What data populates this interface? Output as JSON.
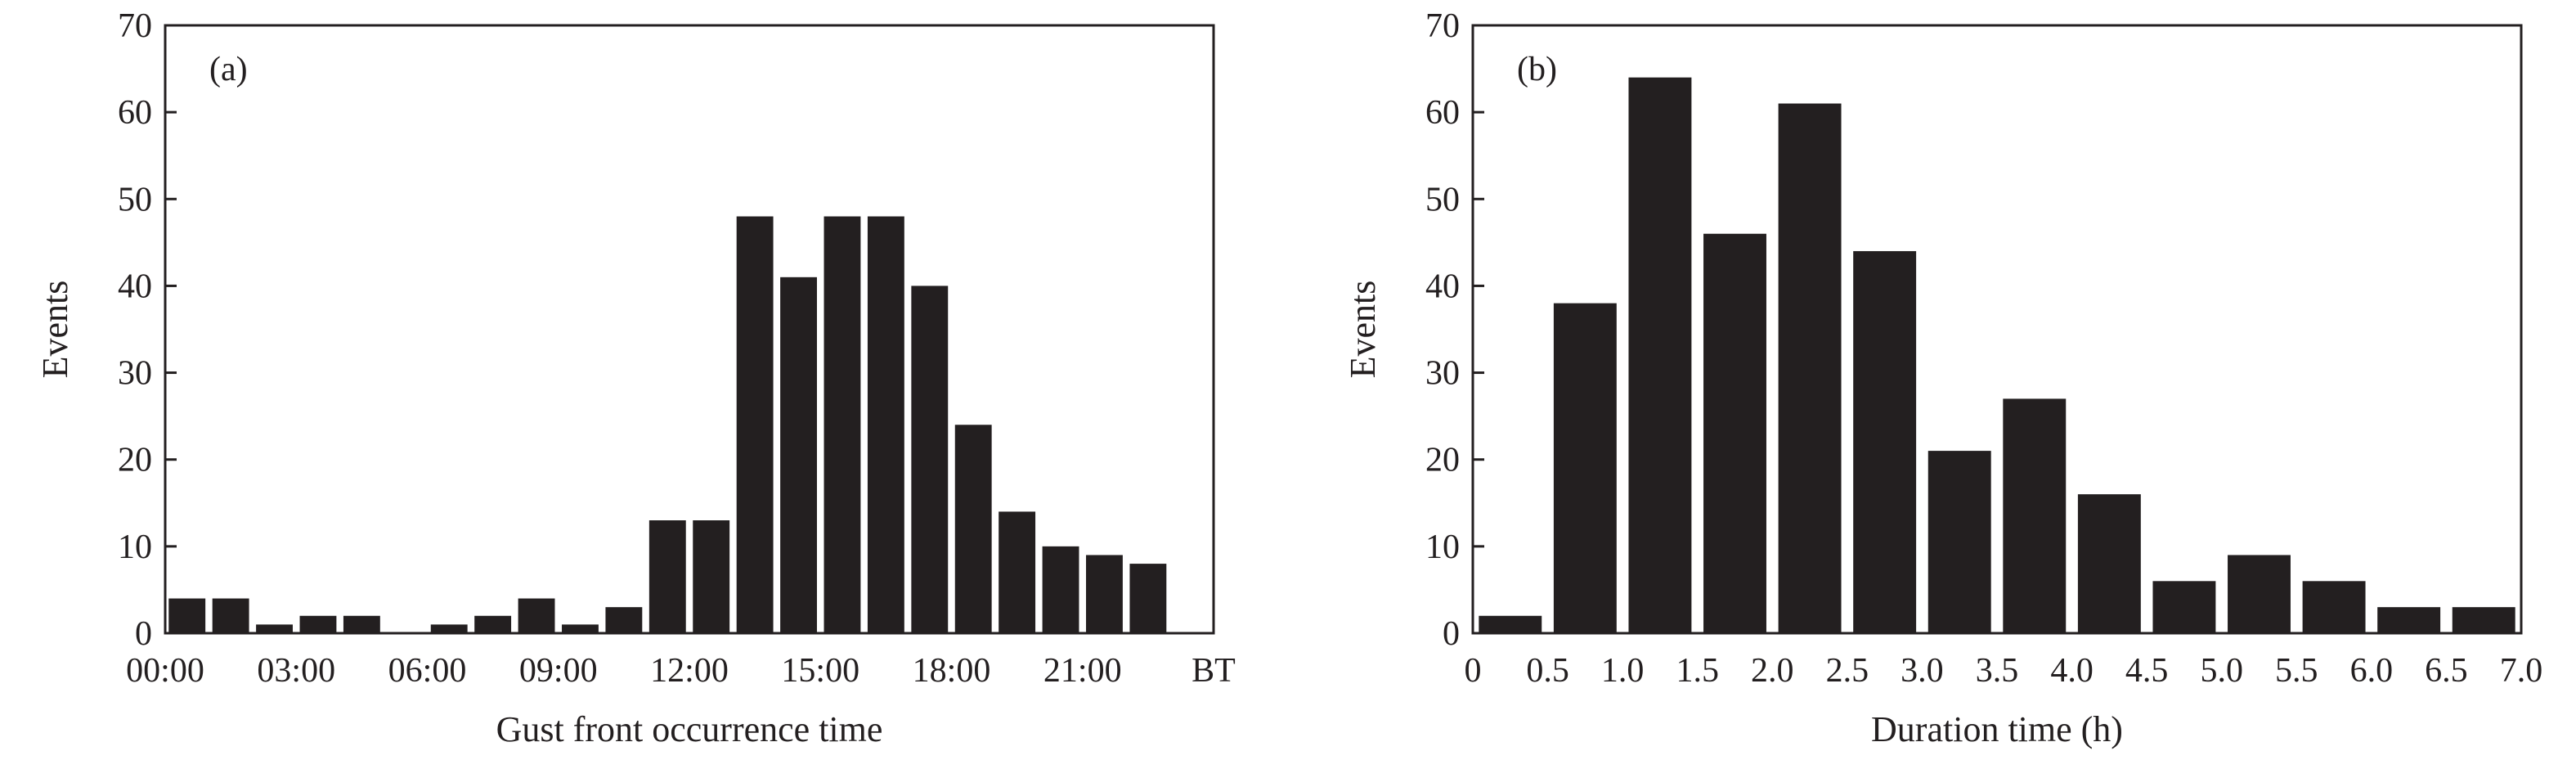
{
  "chart_data": [
    {
      "type": "bar",
      "panel_label": "(a)",
      "xlabel": "Gust front occurrence time",
      "ylabel": "Events",
      "ylim": [
        0,
        70
      ],
      "yticks": [
        "0",
        "10",
        "20",
        "30",
        "40",
        "50",
        "60",
        "70"
      ],
      "xtick_labels": [
        "00:00",
        "03:00",
        "06:00",
        "09:00",
        "12:00",
        "15:00",
        "18:00",
        "21:00",
        "BT"
      ],
      "categories": [
        "00",
        "01",
        "02",
        "03",
        "04",
        "05",
        "06",
        "07",
        "08",
        "09",
        "10",
        "11",
        "12",
        "13",
        "14",
        "15",
        "16",
        "17",
        "18",
        "19",
        "20",
        "21",
        "22",
        "23"
      ],
      "values": [
        4,
        4,
        1,
        2,
        2,
        0,
        1,
        2,
        4,
        1,
        3,
        13,
        13,
        48,
        41,
        48,
        48,
        40,
        24,
        14,
        10,
        9,
        8,
        0
      ],
      "grid": false,
      "legend": false,
      "bar_color": "#231f20"
    },
    {
      "type": "bar",
      "panel_label": "(b)",
      "xlabel": "Duration time (h)",
      "ylabel": "Events",
      "ylim": [
        0,
        70
      ],
      "xlim": [
        0,
        7.0
      ],
      "yticks": [
        "0",
        "10",
        "20",
        "30",
        "40",
        "50",
        "60",
        "70"
      ],
      "xtick_labels": [
        "0",
        "0.5",
        "1.0",
        "1.5",
        "2.0",
        "2.5",
        "3.0",
        "3.5",
        "4.0",
        "4.5",
        "5.0",
        "5.5",
        "6.0",
        "6.5",
        "7.0"
      ],
      "bins": [
        [
          0,
          0.5
        ],
        [
          0.5,
          1.0
        ],
        [
          1.0,
          1.5
        ],
        [
          1.5,
          2.0
        ],
        [
          2.0,
          2.5
        ],
        [
          2.5,
          3.0
        ],
        [
          3.0,
          3.5
        ],
        [
          3.5,
          4.0
        ],
        [
          4.0,
          4.5
        ],
        [
          4.5,
          5.0
        ],
        [
          5.0,
          5.5
        ],
        [
          5.5,
          6.0
        ],
        [
          6.0,
          6.5
        ],
        [
          6.5,
          7.0
        ]
      ],
      "values": [
        2,
        38,
        64,
        46,
        61,
        44,
        21,
        27,
        16,
        6,
        9,
        6,
        3,
        3
      ],
      "grid": false,
      "legend": false,
      "bar_color": "#231f20"
    }
  ]
}
